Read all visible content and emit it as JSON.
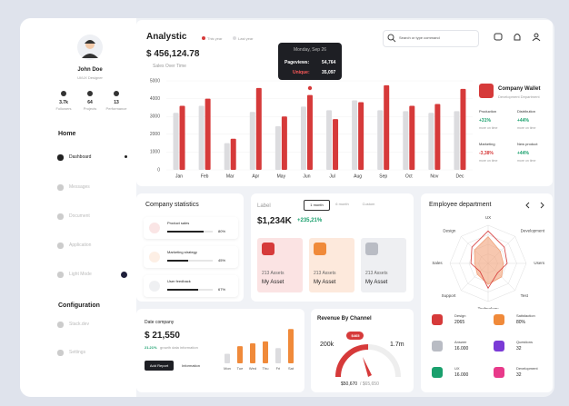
{
  "sidebar": {
    "user": {
      "name": "John Doe",
      "role": "UI/UX Designer"
    },
    "stats": [
      {
        "value": "3.7k",
        "label": "Followers"
      },
      {
        "value": "64",
        "label": "Projects"
      },
      {
        "value": "13",
        "label": "Performance"
      }
    ],
    "sections": [
      {
        "title": "Home",
        "items": [
          "Dashboard",
          "Messages",
          "Document",
          "Application",
          "Light Mode"
        ]
      },
      {
        "title": "Configuration",
        "items": [
          "Stack.dev",
          "Settings"
        ]
      }
    ]
  },
  "header": {
    "title": "Analystic",
    "search_placeholder": "Search or type command",
    "total": "$ 456,124.78",
    "subtitle": "Sales Over Time"
  },
  "tooltip": {
    "date": "Monday, Sep 26",
    "rows": [
      {
        "label": "Pageviews:",
        "value": "54,764"
      },
      {
        "label": "Unique:",
        "value": "35,097"
      }
    ]
  },
  "wallet": {
    "title": "Company Wallet",
    "subtitle": "Development Department",
    "metrics": [
      {
        "label": "Production",
        "value": "+31%",
        "note": "more on time"
      },
      {
        "label": "Distribution",
        "value": "+44%",
        "note": "more on time"
      },
      {
        "label": "Marketing",
        "value": "-3,38%",
        "note": "more on time"
      },
      {
        "label": "New product",
        "value": "+44%",
        "note": "more on time"
      }
    ]
  },
  "company_statistics": {
    "title": "Company statistics",
    "items": [
      {
        "name": "Product sales",
        "value": 80,
        "value_label": "80%"
      },
      {
        "name": "Marketing strategy",
        "value": 45,
        "value_label": "45%"
      },
      {
        "name": "User feedback",
        "value": 67,
        "value_label": "67%"
      }
    ]
  },
  "label_card": {
    "title": "Label",
    "tabs": [
      "1 month",
      "6 month",
      "Custom"
    ],
    "amount": "$1,234K",
    "change": "+235,21%",
    "assets": [
      {
        "count": "213 Assets",
        "name": "My Asset"
      },
      {
        "count": "213 Assets",
        "name": "My Asset"
      },
      {
        "count": "213 Assets",
        "name": "My Asset"
      }
    ]
  },
  "employee_department": {
    "title": "Employee department",
    "tiles": [
      {
        "label": "Design",
        "value": "2065"
      },
      {
        "label": "Satisfaction",
        "value": "80%"
      },
      {
        "label": "Answer",
        "value": "16.000"
      },
      {
        "label": "Questions",
        "value": "32"
      },
      {
        "label": "UX",
        "value": "16.000"
      },
      {
        "label": "Development",
        "value": "32"
      }
    ]
  },
  "date_company": {
    "title": "Date company",
    "amount": "$ 21,550",
    "growth": "21.21%",
    "growth_text": "growth data information",
    "buttons": [
      "Add Report",
      "Information"
    ]
  },
  "revenue": {
    "title": "Revenue By Channel",
    "min_label": "200k",
    "max_label": "1.7m",
    "badge": "$465",
    "current": "$50,670",
    "target": "/ $65,650"
  },
  "chart_data": [
    {
      "type": "bar",
      "categories": [
        "Jan",
        "Feb",
        "Mar",
        "Apr",
        "May",
        "Jun",
        "Jul",
        "Aug",
        "Sep",
        "Oct",
        "Nov",
        "Dec"
      ],
      "series": [
        {
          "name": "This year",
          "color": "#d63a3a",
          "values": [
            3600,
            4000,
            1750,
            4600,
            3000,
            4200,
            2850,
            3800,
            4750,
            3600,
            3700,
            4550
          ]
        },
        {
          "name": "Last year",
          "color": "#dcdcdf",
          "values": [
            3200,
            3600,
            1500,
            3250,
            2450,
            3550,
            3350,
            3900,
            3350,
            3300,
            3200,
            3300
          ]
        }
      ],
      "ylim": [
        0,
        5000
      ],
      "yticks": [
        0,
        1000,
        2000,
        3000,
        4000,
        5000
      ],
      "grid": true
    },
    {
      "type": "bar",
      "categories": [
        "Mon",
        "Tue",
        "Wed",
        "Thu",
        "Fri",
        "Sat"
      ],
      "values": [
        10,
        18,
        21,
        23,
        16,
        36
      ],
      "colors": [
        "#dcdcdf",
        "#f08a3a",
        "#f08a3a",
        "#f08a3a",
        "#dcdcdf",
        "#f08a3a"
      ],
      "ylim": [
        0,
        40
      ]
    },
    {
      "type": "radar",
      "categories": [
        "UX",
        "Development",
        "Users",
        "Test",
        "Technology",
        "Support",
        "Sales",
        "Design"
      ],
      "series": [
        {
          "color": "#f2a27a",
          "values": [
            70,
            45,
            40,
            50,
            55,
            40,
            35,
            50
          ]
        },
        {
          "color": "#d63a3a",
          "values": [
            85,
            60,
            50,
            35,
            65,
            30,
            45,
            60
          ]
        }
      ],
      "rlim": [
        0,
        100
      ]
    }
  ]
}
